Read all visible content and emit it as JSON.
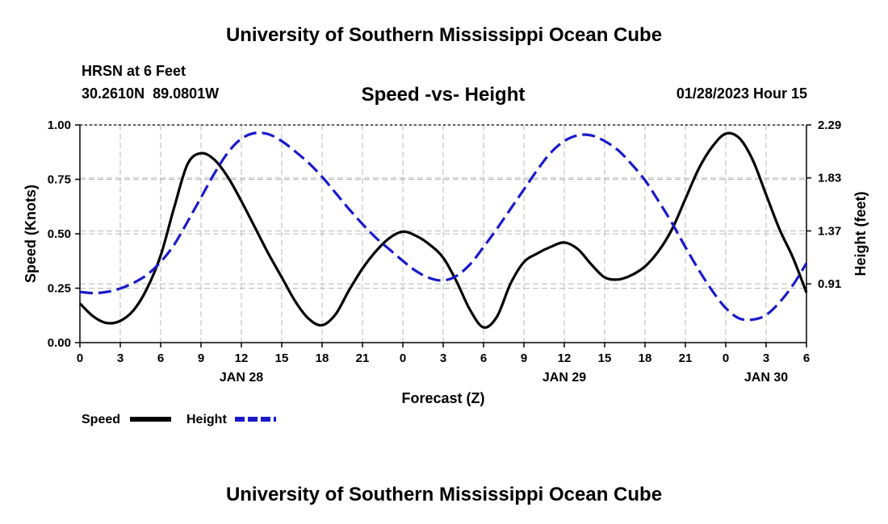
{
  "header": {
    "title": "University of Southern Mississippi Ocean Cube",
    "station": "HRSN at 6 Feet",
    "coords": "30.2610N  89.0801W",
    "datetime": "01/28/2023 Hour 15"
  },
  "footer": {
    "title": "University of Southern Mississippi Ocean Cube"
  },
  "chart_data": {
    "type": "line",
    "title": "Speed -vs- Height",
    "xlabel": "Forecast (Z)",
    "ylabel": "Speed (Knots)",
    "y2label": "Height (feet)",
    "x_range_hours": [
      0,
      54
    ],
    "ylim": [
      0,
      1
    ],
    "y2lim": [
      0.4,
      2.29
    ],
    "y_ticks": [
      "0.00",
      "0.25",
      "0.50",
      "0.75",
      "1.00"
    ],
    "y_tick_values": [
      0,
      0.25,
      0.5,
      0.75,
      1.0
    ],
    "y2_ticks": [
      "0.91",
      "1.37",
      "1.83",
      "2.29"
    ],
    "y2_tick_values": [
      0.91,
      1.37,
      1.83,
      2.29
    ],
    "x_ticks": [
      "0",
      "3",
      "6",
      "9",
      "12",
      "15",
      "18",
      "21",
      "0",
      "3",
      "6",
      "9",
      "12",
      "15",
      "18",
      "21",
      "0",
      "3",
      "6"
    ],
    "day_labels": [
      {
        "label": "JAN 28",
        "hour": 12
      },
      {
        "label": "JAN 29",
        "hour": 36
      },
      {
        "label": "JAN 30",
        "hour": 51
      }
    ],
    "grid": true,
    "legend": {
      "placement": "bottom-left",
      "speed_label": "Speed",
      "height_label": "Height"
    },
    "series": [
      {
        "name": "Speed",
        "axis": "left",
        "color": "#000000",
        "style": "solid",
        "points": [
          [
            0,
            0.18
          ],
          [
            1,
            0.12
          ],
          [
            2,
            0.09
          ],
          [
            3,
            0.1
          ],
          [
            4,
            0.15
          ],
          [
            5,
            0.25
          ],
          [
            6,
            0.4
          ],
          [
            7,
            0.62
          ],
          [
            8,
            0.82
          ],
          [
            9,
            0.87
          ],
          [
            10,
            0.84
          ],
          [
            11,
            0.76
          ],
          [
            12,
            0.65
          ],
          [
            13,
            0.53
          ],
          [
            14,
            0.41
          ],
          [
            15,
            0.3
          ],
          [
            16,
            0.19
          ],
          [
            17,
            0.11
          ],
          [
            18,
            0.08
          ],
          [
            19,
            0.13
          ],
          [
            20,
            0.24
          ],
          [
            21,
            0.34
          ],
          [
            22,
            0.42
          ],
          [
            23,
            0.48
          ],
          [
            24,
            0.51
          ],
          [
            25,
            0.49
          ],
          [
            26,
            0.45
          ],
          [
            27,
            0.39
          ],
          [
            28,
            0.28
          ],
          [
            29,
            0.15
          ],
          [
            30,
            0.07
          ],
          [
            31,
            0.12
          ],
          [
            32,
            0.27
          ],
          [
            33,
            0.37
          ],
          [
            34,
            0.41
          ],
          [
            35,
            0.44
          ],
          [
            36,
            0.46
          ],
          [
            37,
            0.43
          ],
          [
            38,
            0.36
          ],
          [
            39,
            0.3
          ],
          [
            40,
            0.29
          ],
          [
            41,
            0.31
          ],
          [
            42,
            0.35
          ],
          [
            43,
            0.42
          ],
          [
            44,
            0.52
          ],
          [
            45,
            0.66
          ],
          [
            46,
            0.8
          ],
          [
            47,
            0.9
          ],
          [
            48,
            0.96
          ],
          [
            49,
            0.94
          ],
          [
            50,
            0.84
          ],
          [
            51,
            0.68
          ],
          [
            52,
            0.52
          ],
          [
            53,
            0.39
          ],
          [
            54,
            0.23
          ]
        ]
      },
      {
        "name": "Height",
        "axis": "right",
        "color": "#1a1acc",
        "style": "dashed",
        "points": [
          [
            0,
            0.84
          ],
          [
            1,
            0.83
          ],
          [
            2,
            0.84
          ],
          [
            3,
            0.87
          ],
          [
            4,
            0.92
          ],
          [
            5,
            0.99
          ],
          [
            6,
            1.1
          ],
          [
            7,
            1.25
          ],
          [
            8,
            1.45
          ],
          [
            9,
            1.66
          ],
          [
            10,
            1.87
          ],
          [
            11,
            2.05
          ],
          [
            12,
            2.17
          ],
          [
            13,
            2.22
          ],
          [
            14,
            2.21
          ],
          [
            15,
            2.15
          ],
          [
            16,
            2.06
          ],
          [
            17,
            1.96
          ],
          [
            18,
            1.84
          ],
          [
            19,
            1.7
          ],
          [
            20,
            1.56
          ],
          [
            21,
            1.43
          ],
          [
            22,
            1.31
          ],
          [
            23,
            1.21
          ],
          [
            24,
            1.11
          ],
          [
            25,
            1.02
          ],
          [
            26,
            0.96
          ],
          [
            27,
            0.94
          ],
          [
            28,
            0.98
          ],
          [
            29,
            1.08
          ],
          [
            30,
            1.23
          ],
          [
            31,
            1.39
          ],
          [
            32,
            1.56
          ],
          [
            33,
            1.73
          ],
          [
            34,
            1.9
          ],
          [
            35,
            2.05
          ],
          [
            36,
            2.15
          ],
          [
            37,
            2.2
          ],
          [
            38,
            2.2
          ],
          [
            39,
            2.15
          ],
          [
            40,
            2.07
          ],
          [
            41,
            1.95
          ],
          [
            42,
            1.81
          ],
          [
            43,
            1.63
          ],
          [
            44,
            1.44
          ],
          [
            45,
            1.23
          ],
          [
            46,
            1.03
          ],
          [
            47,
            0.85
          ],
          [
            48,
            0.7
          ],
          [
            49,
            0.61
          ],
          [
            50,
            0.6
          ],
          [
            51,
            0.64
          ],
          [
            52,
            0.75
          ],
          [
            53,
            0.9
          ],
          [
            54,
            1.09
          ]
        ]
      }
    ]
  }
}
